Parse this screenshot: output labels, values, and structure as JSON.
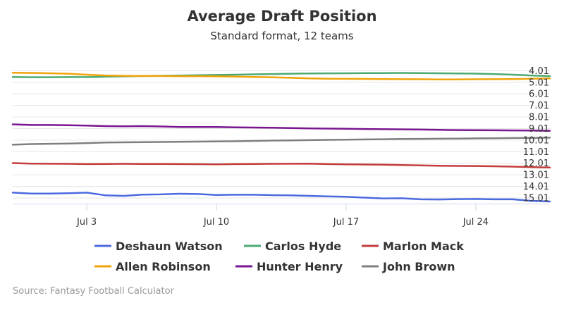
{
  "chart_data": {
    "type": "line",
    "title": "Average Draft Position",
    "subtitle": "Standard format, 12 teams",
    "xlabel": "",
    "ylabel": "",
    "x_ticks": [
      "Jul 3",
      "Jul 10",
      "Jul 17",
      "Jul 24"
    ],
    "y_ticks": [
      "4.01",
      "5.01",
      "6.01",
      "7.01",
      "8.01",
      "9.01",
      "10.01",
      "11.01",
      "12.01",
      "13.01",
      "14.01",
      "15.01"
    ],
    "ylim": [
      3.5,
      15.5
    ],
    "y_reversed": true,
    "xlim": [
      "Jun 29",
      "Jul 28"
    ],
    "x": [
      "Jun 29",
      "Jun 30",
      "Jul 1",
      "Jul 2",
      "Jul 3",
      "Jul 4",
      "Jul 5",
      "Jul 6",
      "Jul 7",
      "Jul 8",
      "Jul 9",
      "Jul 10",
      "Jul 11",
      "Jul 12",
      "Jul 13",
      "Jul 14",
      "Jul 15",
      "Jul 16",
      "Jul 17",
      "Jul 18",
      "Jul 19",
      "Jul 20",
      "Jul 21",
      "Jul 22",
      "Jul 23",
      "Jul 24",
      "Jul 25",
      "Jul 26",
      "Jul 27",
      "Jul 28"
    ],
    "grid": true,
    "legend_position": "bottom",
    "series": [
      {
        "name": "Deshaun Watson",
        "color": "#4c6ae0",
        "values": [
          14.55,
          14.63,
          14.63,
          14.6,
          14.55,
          14.78,
          14.83,
          14.72,
          14.7,
          14.65,
          14.67,
          14.75,
          14.73,
          14.73,
          14.77,
          14.78,
          14.83,
          14.88,
          14.91,
          14.98,
          15.05,
          15.04,
          15.13,
          15.14,
          15.11,
          15.1,
          15.13,
          15.13,
          15.26,
          15.32
        ]
      },
      {
        "name": "Carlos Hyde",
        "color": "#4caa72",
        "values": [
          4.55,
          4.57,
          4.57,
          4.56,
          4.56,
          4.53,
          4.5,
          4.47,
          4.45,
          4.43,
          4.4,
          4.38,
          4.35,
          4.32,
          4.3,
          4.27,
          4.25,
          4.24,
          4.23,
          4.22,
          4.21,
          4.2,
          4.21,
          4.23,
          4.25,
          4.26,
          4.3,
          4.35,
          4.42,
          4.48
        ]
      },
      {
        "name": "Marlon Mack",
        "color": "#c43c3c",
        "values": [
          12.0,
          12.04,
          12.05,
          12.06,
          12.08,
          12.07,
          12.06,
          12.07,
          12.07,
          12.08,
          12.09,
          12.1,
          12.08,
          12.07,
          12.06,
          12.05,
          12.04,
          12.08,
          12.1,
          12.12,
          12.14,
          12.16,
          12.2,
          12.23,
          12.24,
          12.25,
          12.27,
          12.3,
          12.35,
          12.38
        ]
      },
      {
        "name": "Allen Robinson",
        "color": "#f0a30a",
        "values": [
          4.18,
          4.2,
          4.23,
          4.27,
          4.35,
          4.42,
          4.45,
          4.47,
          4.47,
          4.48,
          4.48,
          4.5,
          4.52,
          4.55,
          4.58,
          4.62,
          4.67,
          4.7,
          4.71,
          4.72,
          4.73,
          4.74,
          4.75,
          4.76,
          4.76,
          4.75,
          4.74,
          4.73,
          4.7,
          4.68
        ]
      },
      {
        "name": "Hunter Henry",
        "color": "#7a1690",
        "values": [
          8.65,
          8.7,
          8.7,
          8.72,
          8.75,
          8.8,
          8.82,
          8.8,
          8.83,
          8.88,
          8.87,
          8.88,
          8.9,
          8.92,
          8.94,
          8.97,
          9.0,
          9.01,
          9.03,
          9.05,
          9.07,
          9.08,
          9.1,
          9.12,
          9.14,
          9.15,
          9.16,
          9.17,
          9.18,
          9.2
        ]
      },
      {
        "name": "John Brown",
        "color": "#7f7f7f",
        "values": [
          10.41,
          10.35,
          10.33,
          10.31,
          10.27,
          10.22,
          10.2,
          10.18,
          10.17,
          10.16,
          10.14,
          10.12,
          10.11,
          10.08,
          10.05,
          10.03,
          10.01,
          9.99,
          9.97,
          9.95,
          9.93,
          9.91,
          9.9,
          9.89,
          9.88,
          9.86,
          9.85,
          9.83,
          9.82,
          9.8
        ]
      }
    ],
    "credit": "Source: Fantasy Football Calculator"
  }
}
